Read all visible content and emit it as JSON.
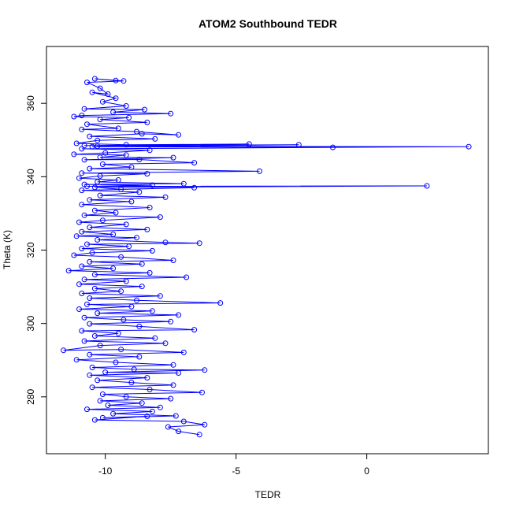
{
  "chart_data": {
    "type": "scatter",
    "title": "ATOM2 Southbound TEDR",
    "xlabel": "TEDR",
    "ylabel": "Theta (K)",
    "xlim": [
      -12.25,
      4.65
    ],
    "ylim": [
      264.5,
      375.5
    ],
    "x_ticks": [
      -10,
      -5,
      0
    ],
    "y_ticks": [
      280,
      300,
      320,
      340,
      360
    ],
    "color": "#0000ff",
    "marker": "open-circle",
    "connected": true,
    "series": [
      {
        "values": [
          [
            -9.6,
            366.2
          ],
          [
            -10.4,
            366.7
          ],
          [
            -9.3,
            366.1
          ],
          [
            -10.7,
            365.7
          ],
          [
            -10.2,
            364.1
          ],
          [
            -9.9,
            362.5
          ],
          [
            -10.5,
            363.0
          ],
          [
            -9.6,
            361.4
          ],
          [
            -10.1,
            360.4
          ],
          [
            -9.2,
            359.3
          ],
          [
            -10.8,
            358.5
          ],
          [
            -8.5,
            358.3
          ],
          [
            -9.7,
            357.6
          ],
          [
            -7.5,
            357.2
          ],
          [
            -10.9,
            356.7
          ],
          [
            -11.2,
            356.4
          ],
          [
            -9.1,
            356.1
          ],
          [
            -10.2,
            355.6
          ],
          [
            -8.4,
            354.8
          ],
          [
            -10.7,
            354.3
          ],
          [
            -9.5,
            353.2
          ],
          [
            -10.9,
            352.9
          ],
          [
            -8.8,
            352.3
          ],
          [
            -7.2,
            351.4
          ],
          [
            -8.6,
            351.7
          ],
          [
            -10.6,
            351.0
          ],
          [
            -8.1,
            350.3
          ],
          [
            -10.3,
            349.9
          ],
          [
            -11.1,
            349.1
          ],
          [
            -9.2,
            348.7
          ],
          [
            -4.5,
            348.9
          ],
          [
            -10.8,
            348.5
          ],
          [
            -2.6,
            348.7
          ],
          [
            -10.5,
            348.2
          ],
          [
            -1.3,
            348.0
          ],
          [
            -10.3,
            348.3
          ],
          [
            3.9,
            348.2
          ],
          [
            -10.9,
            347.6
          ],
          [
            -8.3,
            347.2
          ],
          [
            -10.0,
            346.5
          ],
          [
            -11.2,
            346.1
          ],
          [
            -9.2,
            345.9
          ],
          [
            -10.2,
            345.3
          ],
          [
            -7.4,
            345.2
          ],
          [
            -10.8,
            344.6
          ],
          [
            -8.7,
            344.7
          ],
          [
            -6.6,
            343.8
          ],
          [
            -10.1,
            343.4
          ],
          [
            -9.0,
            342.6
          ],
          [
            -10.6,
            342.2
          ],
          [
            -4.1,
            341.5
          ],
          [
            -10.9,
            341.0
          ],
          [
            -8.4,
            340.8
          ],
          [
            -10.2,
            340.2
          ],
          [
            -11.0,
            339.6
          ],
          [
            -9.5,
            339.1
          ],
          [
            -10.3,
            338.6
          ],
          [
            -7.0,
            338.1
          ],
          [
            -10.8,
            337.9
          ],
          [
            -8.2,
            337.7
          ],
          [
            -10.7,
            337.4
          ],
          [
            2.3,
            337.5
          ],
          [
            -10.4,
            337.1
          ],
          [
            -9.4,
            336.6
          ],
          [
            -6.6,
            337.0
          ],
          [
            -10.9,
            336.3
          ],
          [
            -8.7,
            335.8
          ],
          [
            -10.2,
            334.9
          ],
          [
            -7.7,
            334.4
          ],
          [
            -10.6,
            333.7
          ],
          [
            -9.0,
            333.2
          ],
          [
            -10.9,
            332.4
          ],
          [
            -8.3,
            331.6
          ],
          [
            -10.4,
            330.8
          ],
          [
            -9.6,
            330.2
          ],
          [
            -10.8,
            329.5
          ],
          [
            -7.9,
            329.0
          ],
          [
            -10.1,
            328.1
          ],
          [
            -11.0,
            327.6
          ],
          [
            -9.2,
            327.0
          ],
          [
            -10.6,
            326.2
          ],
          [
            -8.4,
            325.6
          ],
          [
            -10.9,
            325.0
          ],
          [
            -9.7,
            324.3
          ],
          [
            -11.1,
            323.8
          ],
          [
            -8.8,
            323.4
          ],
          [
            -10.3,
            322.8
          ],
          [
            -7.7,
            322.1
          ],
          [
            -6.4,
            321.9
          ],
          [
            -10.7,
            321.6
          ],
          [
            -9.1,
            321.0
          ],
          [
            -10.9,
            320.4
          ],
          [
            -8.2,
            319.8
          ],
          [
            -10.5,
            319.3
          ],
          [
            -11.2,
            318.6
          ],
          [
            -9.4,
            318.1
          ],
          [
            -7.4,
            317.2
          ],
          [
            -10.6,
            316.8
          ],
          [
            -8.6,
            316.2
          ],
          [
            -10.9,
            315.6
          ],
          [
            -9.7,
            315.0
          ],
          [
            -11.4,
            314.4
          ],
          [
            -8.3,
            313.8
          ],
          [
            -10.4,
            313.3
          ],
          [
            -6.9,
            312.6
          ],
          [
            -10.8,
            312.0
          ],
          [
            -9.2,
            311.5
          ],
          [
            -11.0,
            310.7
          ],
          [
            -8.6,
            310.1
          ],
          [
            -10.4,
            309.5
          ],
          [
            -9.4,
            308.8
          ],
          [
            -10.9,
            308.2
          ],
          [
            -7.9,
            307.5
          ],
          [
            -10.6,
            306.9
          ],
          [
            -8.8,
            306.3
          ],
          [
            -5.6,
            305.6
          ],
          [
            -10.7,
            305.2
          ],
          [
            -9.0,
            304.6
          ],
          [
            -11.0,
            303.9
          ],
          [
            -8.2,
            303.4
          ],
          [
            -10.3,
            302.8
          ],
          [
            -7.2,
            302.3
          ],
          [
            -10.8,
            301.6
          ],
          [
            -9.3,
            301.0
          ],
          [
            -7.5,
            300.5
          ],
          [
            -10.6,
            299.9
          ],
          [
            -8.7,
            299.2
          ],
          [
            -6.6,
            298.3
          ],
          [
            -10.9,
            298.0
          ],
          [
            -9.5,
            297.3
          ],
          [
            -10.4,
            296.6
          ],
          [
            -8.1,
            296.0
          ],
          [
            -10.8,
            295.2
          ],
          [
            -7.7,
            294.6
          ],
          [
            -10.2,
            294.0
          ],
          [
            -11.6,
            292.7
          ],
          [
            -9.4,
            292.9
          ],
          [
            -7.0,
            292.1
          ],
          [
            -10.6,
            291.5
          ],
          [
            -8.7,
            290.9
          ],
          [
            -11.1,
            290.1
          ],
          [
            -9.6,
            289.4
          ],
          [
            -7.4,
            288.7
          ],
          [
            -10.5,
            288.0
          ],
          [
            -8.9,
            287.5
          ],
          [
            -6.2,
            287.3
          ],
          [
            -10.0,
            286.7
          ],
          [
            -7.2,
            286.5
          ],
          [
            -10.6,
            285.9
          ],
          [
            -8.4,
            285.2
          ],
          [
            -10.3,
            284.5
          ],
          [
            -9.0,
            283.9
          ],
          [
            -7.4,
            283.2
          ],
          [
            -10.5,
            282.6
          ],
          [
            -8.3,
            282.0
          ],
          [
            -6.3,
            281.2
          ],
          [
            -10.1,
            280.7
          ],
          [
            -9.2,
            280.0
          ],
          [
            -7.5,
            279.5
          ],
          [
            -10.2,
            278.9
          ],
          [
            -8.6,
            278.3
          ],
          [
            -9.9,
            277.7
          ],
          [
            -7.9,
            277.1
          ],
          [
            -10.7,
            276.6
          ],
          [
            -8.2,
            276.0
          ],
          [
            -9.7,
            275.4
          ],
          [
            -7.3,
            274.8
          ],
          [
            -10.1,
            274.3
          ],
          [
            -8.4,
            274.7
          ],
          [
            -10.4,
            273.7
          ],
          [
            -7.0,
            273.3
          ],
          [
            -6.2,
            272.4
          ],
          [
            -7.6,
            271.8
          ],
          [
            -7.2,
            270.6
          ],
          [
            -6.4,
            269.7
          ]
        ]
      }
    ]
  }
}
